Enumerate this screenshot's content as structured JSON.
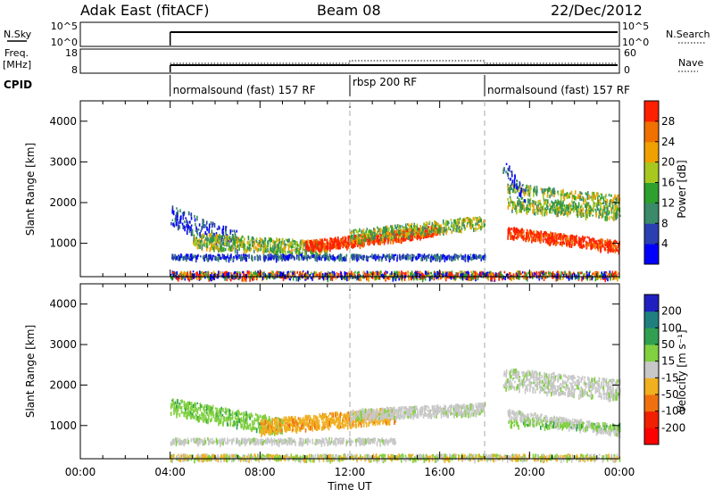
{
  "header": {
    "title": "Adak East (fitACF)",
    "beam": "Beam 08",
    "date": "22/Dec/2012"
  },
  "nsky_panel": {
    "label": "N.Sky",
    "left_ticks": [
      "10^5",
      "10^0"
    ],
    "right_ticks": [
      "10^5",
      "10^0"
    ],
    "right_label": "N.Search"
  },
  "freq_panel": {
    "label_line1": "Freq.",
    "label_line2": "[MHz]",
    "left_ticks": [
      "18",
      "8"
    ],
    "right_ticks": [
      "60",
      "0"
    ],
    "right_label": "Nave"
  },
  "cpid": {
    "label": "CPID",
    "segments": [
      {
        "text": "normalsound (fast) 157 RF",
        "start_hour": 4
      },
      {
        "text": "rbsp 200 RF",
        "start_hour": 12
      },
      {
        "text": "normalsound (fast) 157 RF",
        "start_hour": 18
      }
    ]
  },
  "chart_data": [
    {
      "type": "heatmap",
      "name": "power",
      "ylabel": "Slant Range [km]",
      "ylim": [
        180,
        4500
      ],
      "yticks": [
        1000,
        2000,
        3000,
        4000
      ],
      "ytick_labels": [
        "1000",
        "2000",
        "3000",
        "4000"
      ],
      "colorbar_label": "Power [dB]",
      "colorbar_ticks": [
        "4",
        "8",
        "12",
        "16",
        "20",
        "24",
        "28"
      ],
      "colorbar_colors": [
        "#0000ff",
        "#2a3fb0",
        "#3b8a6a",
        "#2ea02e",
        "#a8c820",
        "#f0a000",
        "#f07000",
        "#ff2000"
      ]
    },
    {
      "type": "heatmap",
      "name": "velocity",
      "ylabel": "Slant Range [km]",
      "ylim": [
        180,
        4500
      ],
      "yticks": [
        1000,
        2000,
        3000,
        4000
      ],
      "ytick_labels": [
        "1000",
        "2000",
        "3000",
        "4000"
      ],
      "colorbar_label": "Velocity [m s⁻¹]",
      "colorbar_ticks": [
        "200",
        "100",
        "50",
        "15",
        "-15",
        "-50",
        "-100",
        "-200"
      ],
      "colorbar_colors": [
        "#2020c0",
        "#208080",
        "#30a050",
        "#80d040",
        "#c8c8c8",
        "#f0b020",
        "#f07010",
        "#f02000",
        "#ff0000"
      ]
    }
  ],
  "x_axis": {
    "xlabel": "Time UT",
    "xlim_hours": [
      0,
      24
    ],
    "ticks_hours": [
      0,
      4,
      8,
      12,
      16,
      20,
      24
    ],
    "tick_labels": [
      "00:00",
      "04:00",
      "08:00",
      "12:00",
      "16:00",
      "20:00",
      "00:00"
    ],
    "marker_hours": [
      12,
      18
    ]
  },
  "colors": {
    "power_noise": [
      "#0000ff",
      "#2ea02e",
      "#f0a000",
      "#ff2000"
    ],
    "velocity_negative": "#f0b020",
    "velocity_positive": "#80d040",
    "velocity_zero": "#c8c8c8"
  }
}
